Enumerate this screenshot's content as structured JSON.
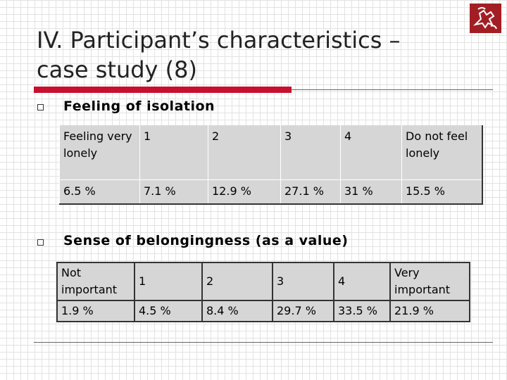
{
  "slide": {
    "title": "IV. Participant’s characteristics – case study (8)",
    "logo_icon": "university-seal-icon",
    "accent_color": "#c8102e"
  },
  "section1": {
    "heading": "Feeling of isolation",
    "headers": [
      "Feeling very lonely",
      "1",
      "2",
      "3",
      "4",
      "Do not feel lonely"
    ],
    "values": [
      "6.5 %",
      "7.1 %",
      "12.9 %",
      "27.1 %",
      "31 %",
      "15.5 %"
    ]
  },
  "section2": {
    "heading": "Sense of belongingness (as a value)",
    "headers": [
      "Not important",
      "1",
      "2",
      "3",
      "4",
      "Very important"
    ],
    "values": [
      "1.9 %",
      "4.5 %",
      "8.4 %",
      "29.7 %",
      "33.5 %",
      "21.9 %"
    ]
  }
}
